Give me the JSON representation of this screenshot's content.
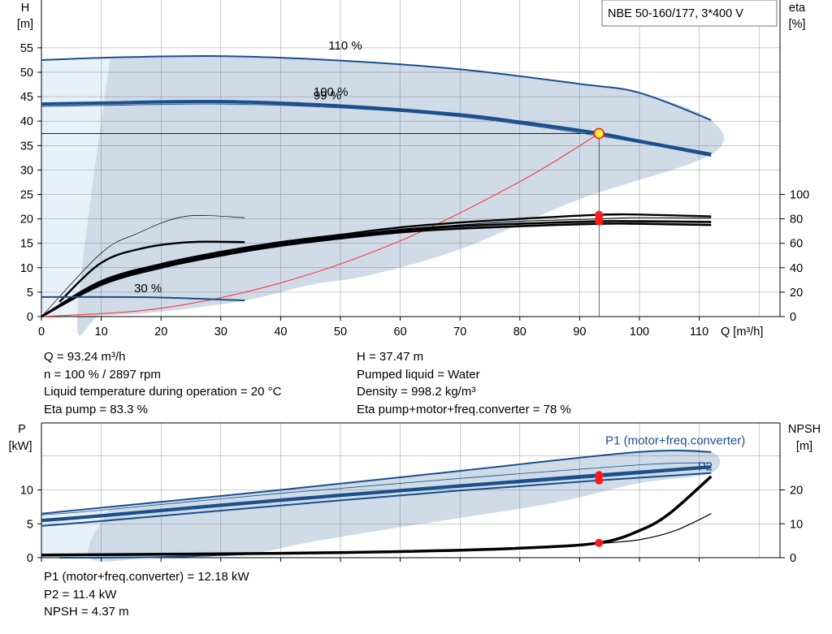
{
  "title_box": "NBE 50-160/177, 3*400 V",
  "info_top_left": [
    "Q = 93.24 m³/h",
    "n = 100 % / 2897 rpm",
    "Liquid temperature during operation = 20 °C",
    "Eta pump = 83.3 %"
  ],
  "info_top_right": [
    "H = 37.47 m",
    "Pumped liquid = Water",
    "Density = 998.2 kg/m³",
    "Eta pump+motor+freq.converter = 78 %"
  ],
  "info_bottom": [
    "P1 (motor+freq.converter) = 12.18 kW",
    "P2 = 11.4 kW",
    "NPSH = 4.37 m"
  ],
  "colors": {
    "curve_blue": "#1a4f8b",
    "band_fill": "#cfdbe7",
    "band_light": "#e8f0f8",
    "efficiency": "#000000",
    "system_curve": "#ff2a2a",
    "op_marker": "#ff1a1a",
    "op_marker_yellow": "#fff23a"
  },
  "chart_data": [
    {
      "type": "line",
      "name": "head-efficiency",
      "x_label": "Q [m³/h]",
      "y_left_label": [
        "H",
        "[m]"
      ],
      "y_right_label": [
        "eta",
        "[%]"
      ],
      "xlim": [
        0,
        120
      ],
      "ylim": [
        0,
        60
      ],
      "x_ticks": [
        0,
        10,
        20,
        30,
        40,
        50,
        60,
        70,
        80,
        90,
        100,
        110
      ],
      "y_ticks": [
        0,
        5,
        10,
        15,
        20,
        25,
        30,
        35,
        40,
        45,
        50,
        55
      ],
      "eta_ticks": [
        0,
        20,
        40,
        60,
        80,
        100
      ],
      "eta_ylim": [
        0,
        100
      ],
      "grid": true,
      "speed_labels": [
        {
          "text": "110 %",
          "x": 48,
          "y": 55.5
        },
        {
          "text": "100 %",
          "x": 45.5,
          "y": 46
        },
        {
          "text": "99 %",
          "x": 45.5,
          "y": 45.3
        },
        {
          "text": "30 %",
          "x": 15.5,
          "y": 5.8
        }
      ],
      "band_outline": [
        [
          11.5,
          53
        ],
        [
          30,
          53.3
        ],
        [
          50,
          52.4
        ],
        [
          70,
          50.6
        ],
        [
          90,
          47.6
        ],
        [
          100,
          45.8
        ],
        [
          112,
          40.2
        ],
        [
          112,
          33.2
        ],
        [
          90,
          24
        ],
        [
          70,
          13.8
        ],
        [
          55,
          8.5
        ],
        [
          45,
          6.5
        ],
        [
          34,
          3.3
        ],
        [
          20,
          1
        ],
        [
          10,
          0.2
        ],
        [
          6,
          0
        ],
        [
          11.5,
          53
        ]
      ],
      "light_band_outline": [
        [
          0,
          52.5
        ],
        [
          11.5,
          53
        ],
        [
          6,
          0
        ],
        [
          0,
          0
        ]
      ],
      "head_110": {
        "points": [
          [
            0,
            52.5
          ],
          [
            11.5,
            53
          ],
          [
            30,
            53.3
          ],
          [
            50,
            52.4
          ],
          [
            70,
            50.6
          ],
          [
            90,
            47.6
          ],
          [
            100,
            45.8
          ],
          [
            112,
            40.2
          ]
        ]
      },
      "head_100": {
        "points": [
          [
            0,
            43.5
          ],
          [
            10,
            43.7
          ],
          [
            30,
            44
          ],
          [
            50,
            43.1
          ],
          [
            70,
            41.3
          ],
          [
            80,
            39.8
          ],
          [
            93.24,
            37.47
          ],
          [
            100,
            35.9
          ],
          [
            112,
            33.2
          ]
        ]
      },
      "head_99": {
        "points": [
          [
            0,
            43
          ],
          [
            10,
            43.2
          ],
          [
            30,
            43.5
          ],
          [
            50,
            42.7
          ],
          [
            70,
            40.9
          ],
          [
            93.24,
            37
          ],
          [
            112,
            32.8
          ]
        ]
      },
      "head_30": {
        "points": [
          [
            0,
            4
          ],
          [
            10,
            4
          ],
          [
            20,
            3.9
          ],
          [
            34,
            3.3
          ]
        ]
      },
      "eta_curves": [
        {
          "width": 2.6,
          "points": [
            [
              0,
              0
            ],
            [
              10,
              26
            ],
            [
              20,
              40
            ],
            [
              30,
              50
            ],
            [
              40,
              58
            ],
            [
              50,
              64
            ],
            [
              60,
              69
            ],
            [
              70,
              72
            ],
            [
              80,
              74
            ],
            [
              93.24,
              76
            ],
            [
              100,
              76
            ],
            [
              112,
              75
            ]
          ]
        },
        {
          "width": 2.6,
          "points": [
            [
              0,
              0
            ],
            [
              10,
              27.5
            ],
            [
              20,
              41.5
            ],
            [
              30,
              51.5
            ],
            [
              40,
              59.5
            ],
            [
              50,
              65.5
            ],
            [
              60,
              70.5
            ],
            [
              70,
              74
            ],
            [
              80,
              76
            ],
            [
              93.24,
              78
            ],
            [
              100,
              78
            ],
            [
              112,
              77.5
            ]
          ]
        },
        {
          "width": 1.0,
          "points": [
            [
              0,
              0
            ],
            [
              10,
              28
            ],
            [
              20,
              42
            ],
            [
              30,
              52
            ],
            [
              40,
              60
            ],
            [
              50,
              66
            ],
            [
              60,
              71.5
            ],
            [
              70,
              75
            ],
            [
              80,
              78
            ],
            [
              93.24,
              80
            ],
            [
              100,
              81
            ],
            [
              112,
              80.5
            ]
          ]
        },
        {
          "width": 2.4,
          "points": [
            [
              0,
              0
            ],
            [
              10,
              29
            ],
            [
              20,
              43
            ],
            [
              30,
              53
            ],
            [
              40,
              61
            ],
            [
              50,
              67
            ],
            [
              60,
              73
            ],
            [
              70,
              77
            ],
            [
              80,
              80
            ],
            [
              93.24,
              83.3
            ],
            [
              100,
              83.5
            ],
            [
              112,
              82
            ]
          ]
        },
        {
          "width": 0.7,
          "points": [
            [
              0,
              0
            ],
            [
              10,
              52
            ],
            [
              16,
              68
            ],
            [
              24,
              82
            ],
            [
              34,
              81
            ]
          ]
        },
        {
          "width": 2.4,
          "points": [
            [
              3,
              12
            ],
            [
              10,
              44
            ],
            [
              17,
              56
            ],
            [
              25,
              61
            ],
            [
              34,
              61
            ]
          ]
        }
      ],
      "system_curve": {
        "points": [
          [
            0,
            0
          ],
          [
            20,
            1.7
          ],
          [
            40,
            6.9
          ],
          [
            60,
            15.5
          ],
          [
            80,
            27.6
          ],
          [
            93.24,
            37.47
          ]
        ]
      },
      "operating_point": {
        "x": 93.24,
        "y": 37.47
      },
      "eta_markers": [
        80,
        83.3,
        78
      ],
      "crosshair": {
        "x": 93.24,
        "y": 37.47
      }
    },
    {
      "type": "line",
      "name": "power-npsh",
      "y_left_label": [
        "P",
        "[kW]"
      ],
      "y_right_label": [
        "NPSH",
        "[m]"
      ],
      "xlim": [
        0,
        120
      ],
      "ylim": [
        0,
        16
      ],
      "npsh_ylim": [
        0,
        32
      ],
      "x_ticks": [
        0,
        10,
        20,
        30,
        40,
        50,
        60,
        70,
        80,
        90,
        100,
        110
      ],
      "y_ticks": [
        0,
        5,
        10
      ],
      "npsh_ticks": [
        0,
        10,
        20
      ],
      "grid": true,
      "series_labels": [
        {
          "text": "P1 (motor+freq.converter)",
          "x": 106,
          "y": 17.3
        },
        {
          "text": "P2",
          "x": 111,
          "y": 13.5
        }
      ],
      "band_outline": [
        [
          11.5,
          7.5
        ],
        [
          40,
          10
        ],
        [
          70,
          12.8
        ],
        [
          100,
          15.6
        ],
        [
          112,
          15.6
        ],
        [
          112,
          12.5
        ],
        [
          100,
          11
        ],
        [
          85,
          8
        ],
        [
          60,
          4.5
        ],
        [
          45,
          2.3
        ],
        [
          34,
          0.5
        ],
        [
          20,
          0.1
        ],
        [
          8,
          0
        ],
        [
          11.5,
          7.5
        ]
      ],
      "light_band_outline": [
        [
          0,
          6.5
        ],
        [
          11.5,
          7.5
        ],
        [
          8,
          0
        ],
        [
          0,
          0
        ]
      ],
      "p1_110": {
        "points": [
          [
            0,
            6.5
          ],
          [
            11.5,
            7.5
          ],
          [
            40,
            10
          ],
          [
            70,
            12.8
          ],
          [
            100,
            15.6
          ],
          [
            112,
            15.6
          ]
        ]
      },
      "p1_100": {
        "points": [
          [
            0,
            5.5
          ],
          [
            10,
            6.2
          ],
          [
            40,
            8.5
          ],
          [
            70,
            10.6
          ],
          [
            93.24,
            12.18
          ],
          [
            112,
            13.4
          ]
        ]
      },
      "p1_99": {
        "points": [
          [
            0,
            5.3
          ],
          [
            10,
            6
          ],
          [
            40,
            8.3
          ],
          [
            70,
            10.4
          ],
          [
            93.24,
            11.9
          ],
          [
            112,
            13.2
          ]
        ]
      },
      "p1_thin": {
        "points": [
          [
            0,
            6.3
          ],
          [
            10,
            7
          ],
          [
            40,
            9.5
          ],
          [
            70,
            11.7
          ],
          [
            100,
            13.7
          ],
          [
            112,
            14
          ]
        ]
      },
      "p2_100": {
        "points": [
          [
            0,
            4.7
          ],
          [
            10,
            5.4
          ],
          [
            40,
            7.7
          ],
          [
            70,
            9.9
          ],
          [
            93.24,
            11.4
          ],
          [
            112,
            12.5
          ]
        ]
      },
      "p_30": {
        "points": [
          [
            3,
            0
          ],
          [
            20,
            0.1
          ],
          [
            34,
            0.5
          ]
        ]
      },
      "npsh_thick": {
        "points": [
          [
            0,
            0.8
          ],
          [
            20,
            1
          ],
          [
            40,
            1.3
          ],
          [
            60,
            1.8
          ],
          [
            80,
            2.8
          ],
          [
            93.24,
            4.37
          ],
          [
            100,
            8
          ],
          [
            105,
            13
          ],
          [
            112,
            24
          ]
        ]
      },
      "npsh_thin": {
        "points": [
          [
            93.24,
            4.2
          ],
          [
            100,
            5.3
          ],
          [
            106,
            8
          ],
          [
            112,
            13
          ]
        ]
      },
      "p_markers": [
        12.18,
        11.4
      ],
      "npsh_marker": 4.37
    }
  ]
}
